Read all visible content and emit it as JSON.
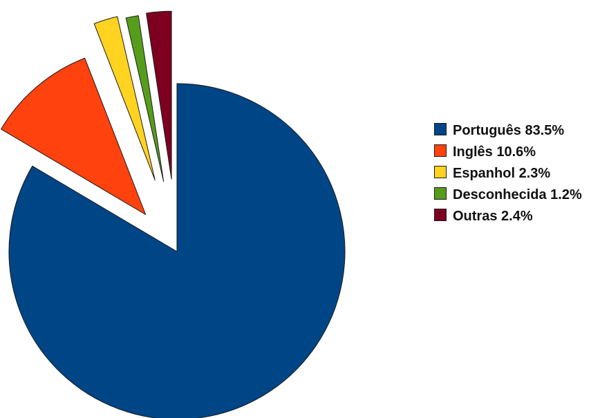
{
  "chart_data": {
    "type": "pie",
    "title": "",
    "legend_position": "right",
    "exploded": true,
    "slices": [
      {
        "name": "Português",
        "value": 83.5,
        "label": "Português 83.5%",
        "color": "#004586"
      },
      {
        "name": "Inglês",
        "value": 10.6,
        "label": "Inglês 10.6%",
        "color": "#ff420e"
      },
      {
        "name": "Espanhol",
        "value": 2.3,
        "label": "Espanhol 2.3%",
        "color": "#ffd320"
      },
      {
        "name": "Desconhecida",
        "value": 1.2,
        "label": "Desconhecida 1.2%",
        "color": "#579d1c"
      },
      {
        "name": "Outras",
        "value": 2.4,
        "label": "Outras 2.4%",
        "color": "#7e0021"
      }
    ]
  }
}
